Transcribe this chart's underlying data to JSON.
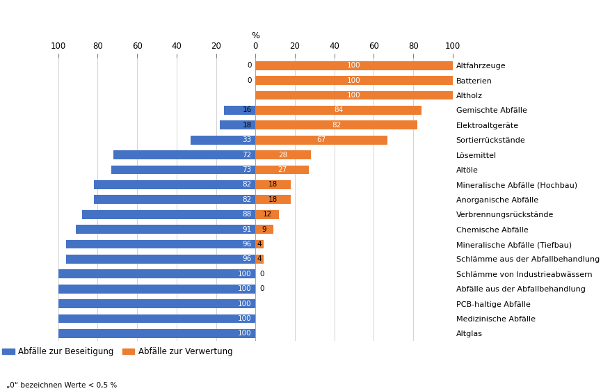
{
  "categories": [
    "Altglas",
    "Medizinische Abfälle",
    "PCB-haltige Abfälle",
    "Abfälle aus der Abfallbehandlung",
    "Schlämme von Industrieabwässern",
    "Schlämme aus der Abfallbehandlung",
    "Mineralische Abfälle (Tiefbau)",
    "Chemische Abfälle",
    "Verbrennungsrückstände",
    "Anorganische Abfälle",
    "Mineralische Abfälle (Hochbau)",
    "Altöle",
    "Lösemittel",
    "Sortierrückstände",
    "Elektroaltgeräte",
    "Gemischte Abfälle",
    "Altholz",
    "Batterien",
    "Altfahrzeuge"
  ],
  "beseitigung": [
    100,
    100,
    100,
    100,
    100,
    96,
    96,
    91,
    88,
    82,
    82,
    73,
    72,
    33,
    18,
    16,
    0,
    0,
    0
  ],
  "verwertung": [
    0,
    0,
    0,
    0,
    0,
    4,
    4,
    9,
    12,
    18,
    18,
    27,
    28,
    67,
    82,
    84,
    100,
    100,
    100
  ],
  "beseitigung_labels": [
    "100",
    "100",
    "100",
    "100",
    "100",
    "96",
    "96",
    "91",
    "88",
    "82",
    "82",
    "73",
    "72",
    "33",
    "18",
    "16",
    "",
    "0",
    "0"
  ],
  "verwertung_labels": [
    "",
    "",
    "",
    "0",
    "0",
    "4",
    "4",
    "9",
    "12",
    "18",
    "18",
    "27",
    "28",
    "67",
    "82",
    "84",
    "100",
    "100",
    "100"
  ],
  "color_beseitigung": "#4472C4",
  "color_verwertung": "#ED7D31",
  "legend_beseitigung": "Abfälle zur Beseitigung",
  "legend_verwertung": "Abfälle zur Verwertung",
  "footnote": "„0“ bezeichnen Werte < 0,5 %",
  "xlabel_percent": "%",
  "xticks": [
    -100,
    -80,
    -60,
    -40,
    -20,
    0,
    20,
    40,
    60,
    80,
    100
  ],
  "xticklabels": [
    "100",
    "80",
    "60",
    "40",
    "20",
    "0",
    "20",
    "40",
    "60",
    "80",
    "100"
  ]
}
